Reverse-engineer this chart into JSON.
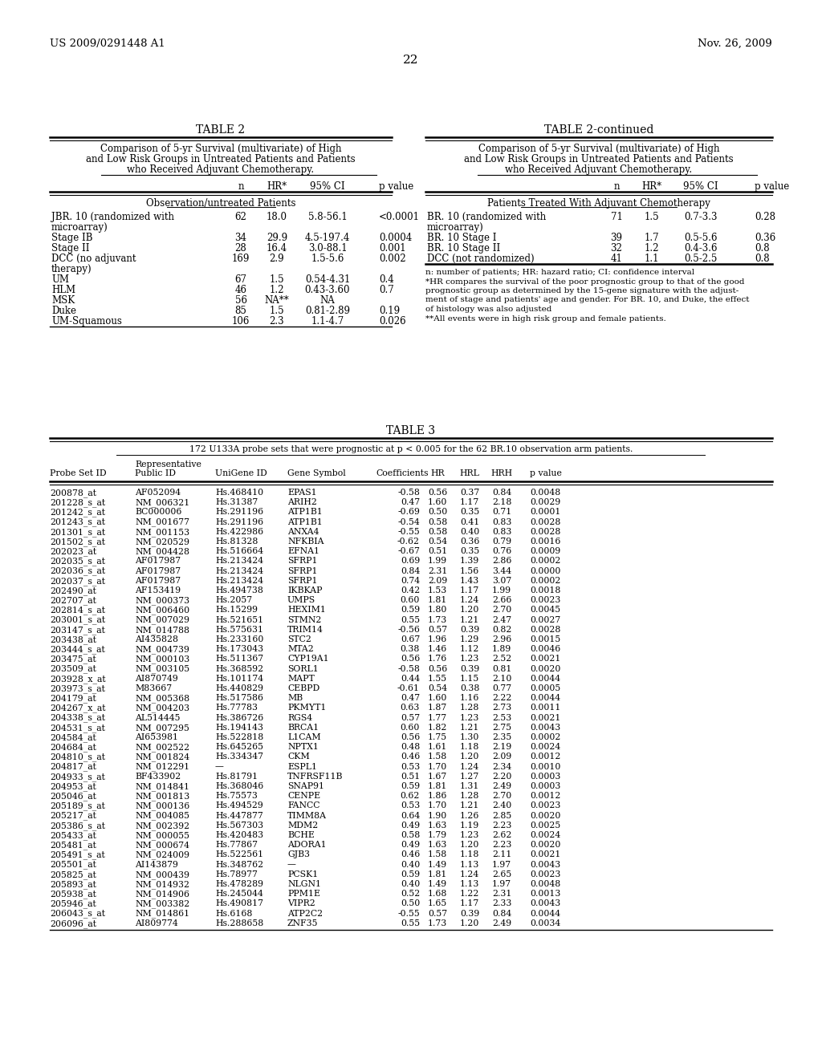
{
  "header_left": "US 2009/0291448 A1",
  "header_right": "Nov. 26, 2009",
  "page_number": "22",
  "table2_title": "TABLE 2",
  "table2cont_title": "TABLE 2-continued",
  "table2_subtitle": "Comparison of 5-yr Survival (multivariate) of High\nand Low Risk Groups in Untreated Patients and Patients\nwho Received Adjuvant Chemotherapy.",
  "table2_section1": "Observation/untreated Patients",
  "table2_rows": [
    [
      "JBR. 10 (randomized with\nmicroarray)",
      "62",
      "18.0",
      "5.8-56.1",
      "<0.0001"
    ],
    [
      "Stage IB",
      "34",
      "29.9",
      "4.5-197.4",
      "0.0004"
    ],
    [
      "Stage II",
      "28",
      "16.4",
      "3.0-88.1",
      "0.001"
    ],
    [
      "DCC (no adjuvant\ntherapy)",
      "169",
      "2.9",
      "1.5-5.6",
      "0.002"
    ],
    [
      "UM",
      "67",
      "1.5",
      "0.54-4.31",
      "0.4"
    ],
    [
      "HLM",
      "46",
      "1.2",
      "0.43-3.60",
      "0.7"
    ],
    [
      "MSK",
      "56",
      "NA**",
      "NA",
      ""
    ],
    [
      "Duke",
      "85",
      "1.5",
      "0.81-2.89",
      "0.19"
    ],
    [
      "UM-Squamous",
      "106",
      "2.3",
      "1.1-4.7",
      "0.026"
    ]
  ],
  "table2cont_section1": "Patients Treated With Adjuvant Chemotherapy",
  "table2cont_rows": [
    [
      "BR. 10 (randomized with\nmicroarray)",
      "71",
      "1.5",
      "0.7-3.3",
      "0.28"
    ],
    [
      "BR. 10 Stage I",
      "39",
      "1.7",
      "0.5-5.6",
      "0.36"
    ],
    [
      "BR. 10 Stage II",
      "32",
      "1.2",
      "0.4-3.6",
      "0.8"
    ],
    [
      "DCC (not randomized)",
      "41",
      "1.1",
      "0.5-2.5",
      "0.8"
    ]
  ],
  "table2_footnote": "n: number of patients; HR: hazard ratio; CI: confidence interval\n*HR compares the survival of the poor prognostic group to that of the good\nprognostic group as determined by the 15-gene signature with the adjust-\nment of stage and patients' age and gender. For BR. 10, and Duke, the effect\nof histology was also adjusted\n**All events were in high risk group and female patients.",
  "table3_title": "TABLE 3",
  "table3_subtitle": "172 U133A probe sets that were prognostic at p < 0.005 for the 62 BR.10 observation arm patients.",
  "table3_rows": [
    [
      "200878_at",
      "AF052094",
      "Hs.468410",
      "EPAS1",
      "-0.58",
      "0.56",
      "0.37",
      "0.84",
      "0.0048"
    ],
    [
      "201228_s_at",
      "NM_006321",
      "Hs.31387",
      "ARIH2",
      "0.47",
      "1.60",
      "1.17",
      "2.18",
      "0.0029"
    ],
    [
      "201242_s_at",
      "BC000006",
      "Hs.291196",
      "ATP1B1",
      "-0.69",
      "0.50",
      "0.35",
      "0.71",
      "0.0001"
    ],
    [
      "201243_s_at",
      "NM_001677",
      "Hs.291196",
      "ATP1B1",
      "-0.54",
      "0.58",
      "0.41",
      "0.83",
      "0.0028"
    ],
    [
      "201301_s_at",
      "NM_001153",
      "Hs.422986",
      "ANXA4",
      "-0.55",
      "0.58",
      "0.40",
      "0.83",
      "0.0028"
    ],
    [
      "201502_s_at",
      "NM_020529",
      "Hs.81328",
      "NFKBIA",
      "-0.62",
      "0.54",
      "0.36",
      "0.79",
      "0.0016"
    ],
    [
      "202023_at",
      "NM_004428",
      "Hs.516664",
      "EFNA1",
      "-0.67",
      "0.51",
      "0.35",
      "0.76",
      "0.0009"
    ],
    [
      "202035_s_at",
      "AF017987",
      "Hs.213424",
      "SFRP1",
      "0.69",
      "1.99",
      "1.39",
      "2.86",
      "0.0002"
    ],
    [
      "202036_s_at",
      "AF017987",
      "Hs.213424",
      "SFRP1",
      "0.84",
      "2.31",
      "1.56",
      "3.44",
      "0.0000"
    ],
    [
      "202037_s_at",
      "AF017987",
      "Hs.213424",
      "SFRP1",
      "0.74",
      "2.09",
      "1.43",
      "3.07",
      "0.0002"
    ],
    [
      "202490_at",
      "AF153419",
      "Hs.494738",
      "IKBKAP",
      "0.42",
      "1.53",
      "1.17",
      "1.99",
      "0.0018"
    ],
    [
      "202707_at",
      "NM_000373",
      "Hs.2057",
      "UMPS",
      "0.60",
      "1.81",
      "1.24",
      "2.66",
      "0.0023"
    ],
    [
      "202814_s_at",
      "NM_006460",
      "Hs.15299",
      "HEXIM1",
      "0.59",
      "1.80",
      "1.20",
      "2.70",
      "0.0045"
    ],
    [
      "203001_s_at",
      "NM_007029",
      "Hs.521651",
      "STMN2",
      "0.55",
      "1.73",
      "1.21",
      "2.47",
      "0.0027"
    ],
    [
      "203147_s_at",
      "NM_014788",
      "Hs.575631",
      "TRIM14",
      "-0.56",
      "0.57",
      "0.39",
      "0.82",
      "0.0028"
    ],
    [
      "203438_at",
      "AI435828",
      "Hs.233160",
      "STC2",
      "0.67",
      "1.96",
      "1.29",
      "2.96",
      "0.0015"
    ],
    [
      "203444_s_at",
      "NM_004739",
      "Hs.173043",
      "MTA2",
      "0.38",
      "1.46",
      "1.12",
      "1.89",
      "0.0046"
    ],
    [
      "203475_at",
      "NM_000103",
      "Hs.511367",
      "CYP19A1",
      "0.56",
      "1.76",
      "1.23",
      "2.52",
      "0.0021"
    ],
    [
      "203509_at",
      "NM_003105",
      "Hs.368592",
      "SORL1",
      "-0.58",
      "0.56",
      "0.39",
      "0.81",
      "0.0020"
    ],
    [
      "203928_x_at",
      "AI870749",
      "Hs.101174",
      "MAPT",
      "0.44",
      "1.55",
      "1.15",
      "2.10",
      "0.0044"
    ],
    [
      "203973_s_at",
      "M83667",
      "Hs.440829",
      "CEBPD",
      "-0.61",
      "0.54",
      "0.38",
      "0.77",
      "0.0005"
    ],
    [
      "204179_at",
      "NM_005368",
      "Hs.517586",
      "MB",
      "0.47",
      "1.60",
      "1.16",
      "2.22",
      "0.0044"
    ],
    [
      "204267_x_at",
      "NM_004203",
      "Hs.77783",
      "PKMYT1",
      "0.63",
      "1.87",
      "1.28",
      "2.73",
      "0.0011"
    ],
    [
      "204338_s_at",
      "AL514445",
      "Hs.386726",
      "RGS4",
      "0.57",
      "1.77",
      "1.23",
      "2.53",
      "0.0021"
    ],
    [
      "204531_s_at",
      "NM_007295",
      "Hs.194143",
      "BRCA1",
      "0.60",
      "1.82",
      "1.21",
      "2.75",
      "0.0043"
    ],
    [
      "204584_at",
      "AI653981",
      "Hs.522818",
      "L1CAM",
      "0.56",
      "1.75",
      "1.30",
      "2.35",
      "0.0002"
    ],
    [
      "204684_at",
      "NM_002522",
      "Hs.645265",
      "NPTX1",
      "0.48",
      "1.61",
      "1.18",
      "2.19",
      "0.0024"
    ],
    [
      "204810_s_at",
      "NM_001824",
      "Hs.334347",
      "CKM",
      "0.46",
      "1.58",
      "1.20",
      "2.09",
      "0.0012"
    ],
    [
      "204817_at",
      "NM_012291",
      "—",
      "ESPL1",
      "0.53",
      "1.70",
      "1.24",
      "2.34",
      "0.0010"
    ],
    [
      "204933_s_at",
      "BF433902",
      "Hs.81791",
      "TNFRSF11B",
      "0.51",
      "1.67",
      "1.27",
      "2.20",
      "0.0003"
    ],
    [
      "204953_at",
      "NM_014841",
      "Hs.368046",
      "SNAP91",
      "0.59",
      "1.81",
      "1.31",
      "2.49",
      "0.0003"
    ],
    [
      "205046_at",
      "NM_001813",
      "Hs.75573",
      "CENPE",
      "0.62",
      "1.86",
      "1.28",
      "2.70",
      "0.0012"
    ],
    [
      "205189_s_at",
      "NM_000136",
      "Hs.494529",
      "FANCC",
      "0.53",
      "1.70",
      "1.21",
      "2.40",
      "0.0023"
    ],
    [
      "205217_at",
      "NM_004085",
      "Hs.447877",
      "TIMM8A",
      "0.64",
      "1.90",
      "1.26",
      "2.85",
      "0.0020"
    ],
    [
      "205386_s_at",
      "NM_002392",
      "Hs.567303",
      "MDM2",
      "0.49",
      "1.63",
      "1.19",
      "2.23",
      "0.0025"
    ],
    [
      "205433_at",
      "NM_000055",
      "Hs.420483",
      "BCHE",
      "0.58",
      "1.79",
      "1.23",
      "2.62",
      "0.0024"
    ],
    [
      "205481_at",
      "NM_000674",
      "Hs.77867",
      "ADORA1",
      "0.49",
      "1.63",
      "1.20",
      "2.23",
      "0.0020"
    ],
    [
      "205491_s_at",
      "NM_024009",
      "Hs.522561",
      "GJB3",
      "0.46",
      "1.58",
      "1.18",
      "2.11",
      "0.0021"
    ],
    [
      "205501_at",
      "AI143879",
      "Hs.348762",
      "—",
      "0.40",
      "1.49",
      "1.13",
      "1.97",
      "0.0043"
    ],
    [
      "205825_at",
      "NM_000439",
      "Hs.78977",
      "PCSK1",
      "0.59",
      "1.81",
      "1.24",
      "2.65",
      "0.0023"
    ],
    [
      "205893_at",
      "NM_014932",
      "Hs.478289",
      "NLGN1",
      "0.40",
      "1.49",
      "1.13",
      "1.97",
      "0.0048"
    ],
    [
      "205938_at",
      "NM_014906",
      "Hs.245044",
      "PPM1E",
      "0.52",
      "1.68",
      "1.22",
      "2.31",
      "0.0013"
    ],
    [
      "205946_at",
      "NM_003382",
      "Hs.490817",
      "VIPR2",
      "0.50",
      "1.65",
      "1.17",
      "2.33",
      "0.0043"
    ],
    [
      "206043_s_at",
      "NM_014861",
      "Hs.6168",
      "ATP2C2",
      "-0.55",
      "0.57",
      "0.39",
      "0.84",
      "0.0044"
    ],
    [
      "206096_at",
      "AI809774",
      "Hs.288658",
      "ZNF35",
      "0.55",
      "1.73",
      "1.20",
      "2.49",
      "0.0034"
    ]
  ]
}
